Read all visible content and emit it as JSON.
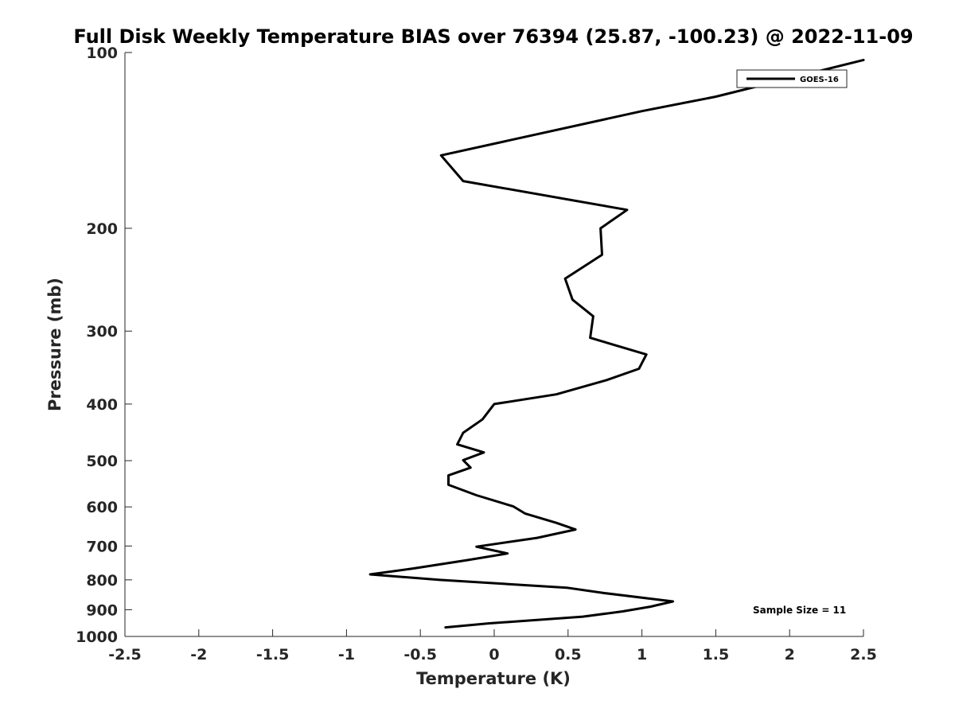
{
  "chart_data": {
    "type": "line",
    "title": "Full Disk Weekly Temperature BIAS over 76394 (25.87, -100.23) @ 2022-11-09",
    "xlabel": "Temperature (K)",
    "ylabel": "Pressure (mb)",
    "xlim": [
      -2.5,
      2.5
    ],
    "ylim": [
      100,
      1000
    ],
    "y_scale": "log",
    "y_reversed": true,
    "x_ticks": [
      -2.5,
      -2,
      -1.5,
      -1,
      -0.5,
      0,
      0.5,
      1,
      1.5,
      2,
      2.5
    ],
    "x_tick_labels": [
      "-2.5",
      "-2",
      "-1.5",
      "-1",
      "-0.5",
      "0",
      "0.5",
      "1",
      "1.5",
      "2",
      "2.5"
    ],
    "y_ticks": [
      100,
      200,
      300,
      400,
      500,
      600,
      700,
      800,
      900,
      1000
    ],
    "y_tick_labels": [
      "100",
      "200",
      "300",
      "400",
      "500",
      "600",
      "700",
      "800",
      "900",
      "1000"
    ],
    "grid": false,
    "legend_position": "top-right",
    "annotation": "Sample Size = 11",
    "series": [
      {
        "name": "GOES-16",
        "color": "#000000",
        "points": [
          {
            "x": 2.5,
            "y": 103
          },
          {
            "x": 1.5,
            "y": 119
          },
          {
            "x": 1.0,
            "y": 126
          },
          {
            "x": -0.36,
            "y": 150
          },
          {
            "x": -0.21,
            "y": 166
          },
          {
            "x": 0.9,
            "y": 186
          },
          {
            "x": 0.72,
            "y": 200
          },
          {
            "x": 0.73,
            "y": 222
          },
          {
            "x": 0.48,
            "y": 244
          },
          {
            "x": 0.53,
            "y": 265
          },
          {
            "x": 0.67,
            "y": 283
          },
          {
            "x": 0.65,
            "y": 308
          },
          {
            "x": 1.03,
            "y": 329
          },
          {
            "x": 0.98,
            "y": 348
          },
          {
            "x": 0.76,
            "y": 364
          },
          {
            "x": 0.42,
            "y": 385
          },
          {
            "x": 0.0,
            "y": 400
          },
          {
            "x": -0.08,
            "y": 425
          },
          {
            "x": -0.21,
            "y": 448
          },
          {
            "x": -0.25,
            "y": 469
          },
          {
            "x": -0.07,
            "y": 484
          },
          {
            "x": -0.21,
            "y": 499
          },
          {
            "x": -0.16,
            "y": 514
          },
          {
            "x": -0.31,
            "y": 530
          },
          {
            "x": -0.31,
            "y": 550
          },
          {
            "x": -0.12,
            "y": 573
          },
          {
            "x": 0.13,
            "y": 599
          },
          {
            "x": 0.21,
            "y": 616
          },
          {
            "x": 0.42,
            "y": 639
          },
          {
            "x": 0.55,
            "y": 656
          },
          {
            "x": 0.29,
            "y": 678
          },
          {
            "x": -0.12,
            "y": 702
          },
          {
            "x": 0.09,
            "y": 721
          },
          {
            "x": -0.18,
            "y": 740
          },
          {
            "x": -0.55,
            "y": 765
          },
          {
            "x": -0.84,
            "y": 783
          },
          {
            "x": -0.37,
            "y": 800
          },
          {
            "x": 0.49,
            "y": 825
          },
          {
            "x": 0.75,
            "y": 843
          },
          {
            "x": 1.21,
            "y": 871
          },
          {
            "x": 1.06,
            "y": 889
          },
          {
            "x": 0.87,
            "y": 906
          },
          {
            "x": 0.6,
            "y": 925
          },
          {
            "x": -0.04,
            "y": 950
          },
          {
            "x": -0.33,
            "y": 965
          }
        ]
      }
    ]
  }
}
